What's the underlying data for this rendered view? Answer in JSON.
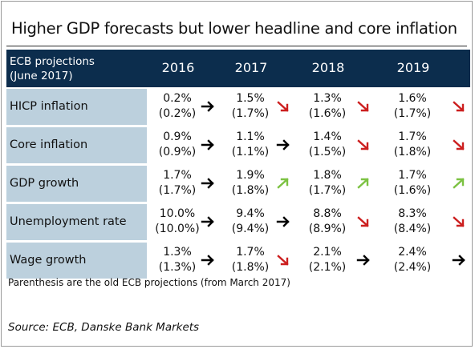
{
  "title": "Higher GDP forecasts but lower headline and core inflation",
  "header": {
    "label_line1": "ECB projections",
    "label_line2": "(June 2017)",
    "years": [
      "2016",
      "2017",
      "2018",
      "2019"
    ]
  },
  "arrow_colors": {
    "right": "#000000",
    "down": "#cc1f1f",
    "up": "#7cc242"
  },
  "rows": [
    {
      "label": "HICP inflation",
      "cells": [
        {
          "new": "0.2%",
          "old": "(0.2%)",
          "arrow": "right"
        },
        {
          "new": "1.5%",
          "old": "(1.7%)",
          "arrow": "down"
        },
        {
          "new": "1.3%",
          "old": "(1.6%)",
          "arrow": "down"
        },
        {
          "new": "1.6%",
          "old": "(1.7%)",
          "arrow": "down"
        }
      ]
    },
    {
      "label": "Core inflation",
      "cells": [
        {
          "new": "0.9%",
          "old": "(0.9%)",
          "arrow": "right"
        },
        {
          "new": "1.1%",
          "old": "(1.1%)",
          "arrow": "right"
        },
        {
          "new": "1.4%",
          "old": "(1.5%)",
          "arrow": "down"
        },
        {
          "new": "1.7%",
          "old": "(1.8%)",
          "arrow": "down"
        }
      ]
    },
    {
      "label": "GDP growth",
      "cells": [
        {
          "new": "1.7%",
          "old": "(1.7%)",
          "arrow": "right"
        },
        {
          "new": "1.9%",
          "old": "(1.8%)",
          "arrow": "up"
        },
        {
          "new": "1.8%",
          "old": "(1.7%)",
          "arrow": "up"
        },
        {
          "new": "1.7%",
          "old": "(1.6%)",
          "arrow": "up"
        }
      ]
    },
    {
      "label": "Unemployment rate",
      "cells": [
        {
          "new": "10.0%",
          "old": "(10.0%)",
          "arrow": "right"
        },
        {
          "new": "9.4%",
          "old": "(9.4%)",
          "arrow": "right"
        },
        {
          "new": "8.8%",
          "old": "(8.9%)",
          "arrow": "down"
        },
        {
          "new": "8.3%",
          "old": "(8.4%)",
          "arrow": "down"
        }
      ]
    },
    {
      "label": "Wage growth",
      "cells": [
        {
          "new": "1.3%",
          "old": "(1.3%)",
          "arrow": "right"
        },
        {
          "new": "1.7%",
          "old": "(1.8%)",
          "arrow": "down"
        },
        {
          "new": "2.1%",
          "old": "(2.1%)",
          "arrow": "right"
        },
        {
          "new": "2.4%",
          "old": "(2.4%)",
          "arrow": "right"
        }
      ]
    }
  ],
  "note": "Parenthesis are the old ECB projections (from March 2017)",
  "source": "Source: ECB, Danske Bank Markets"
}
